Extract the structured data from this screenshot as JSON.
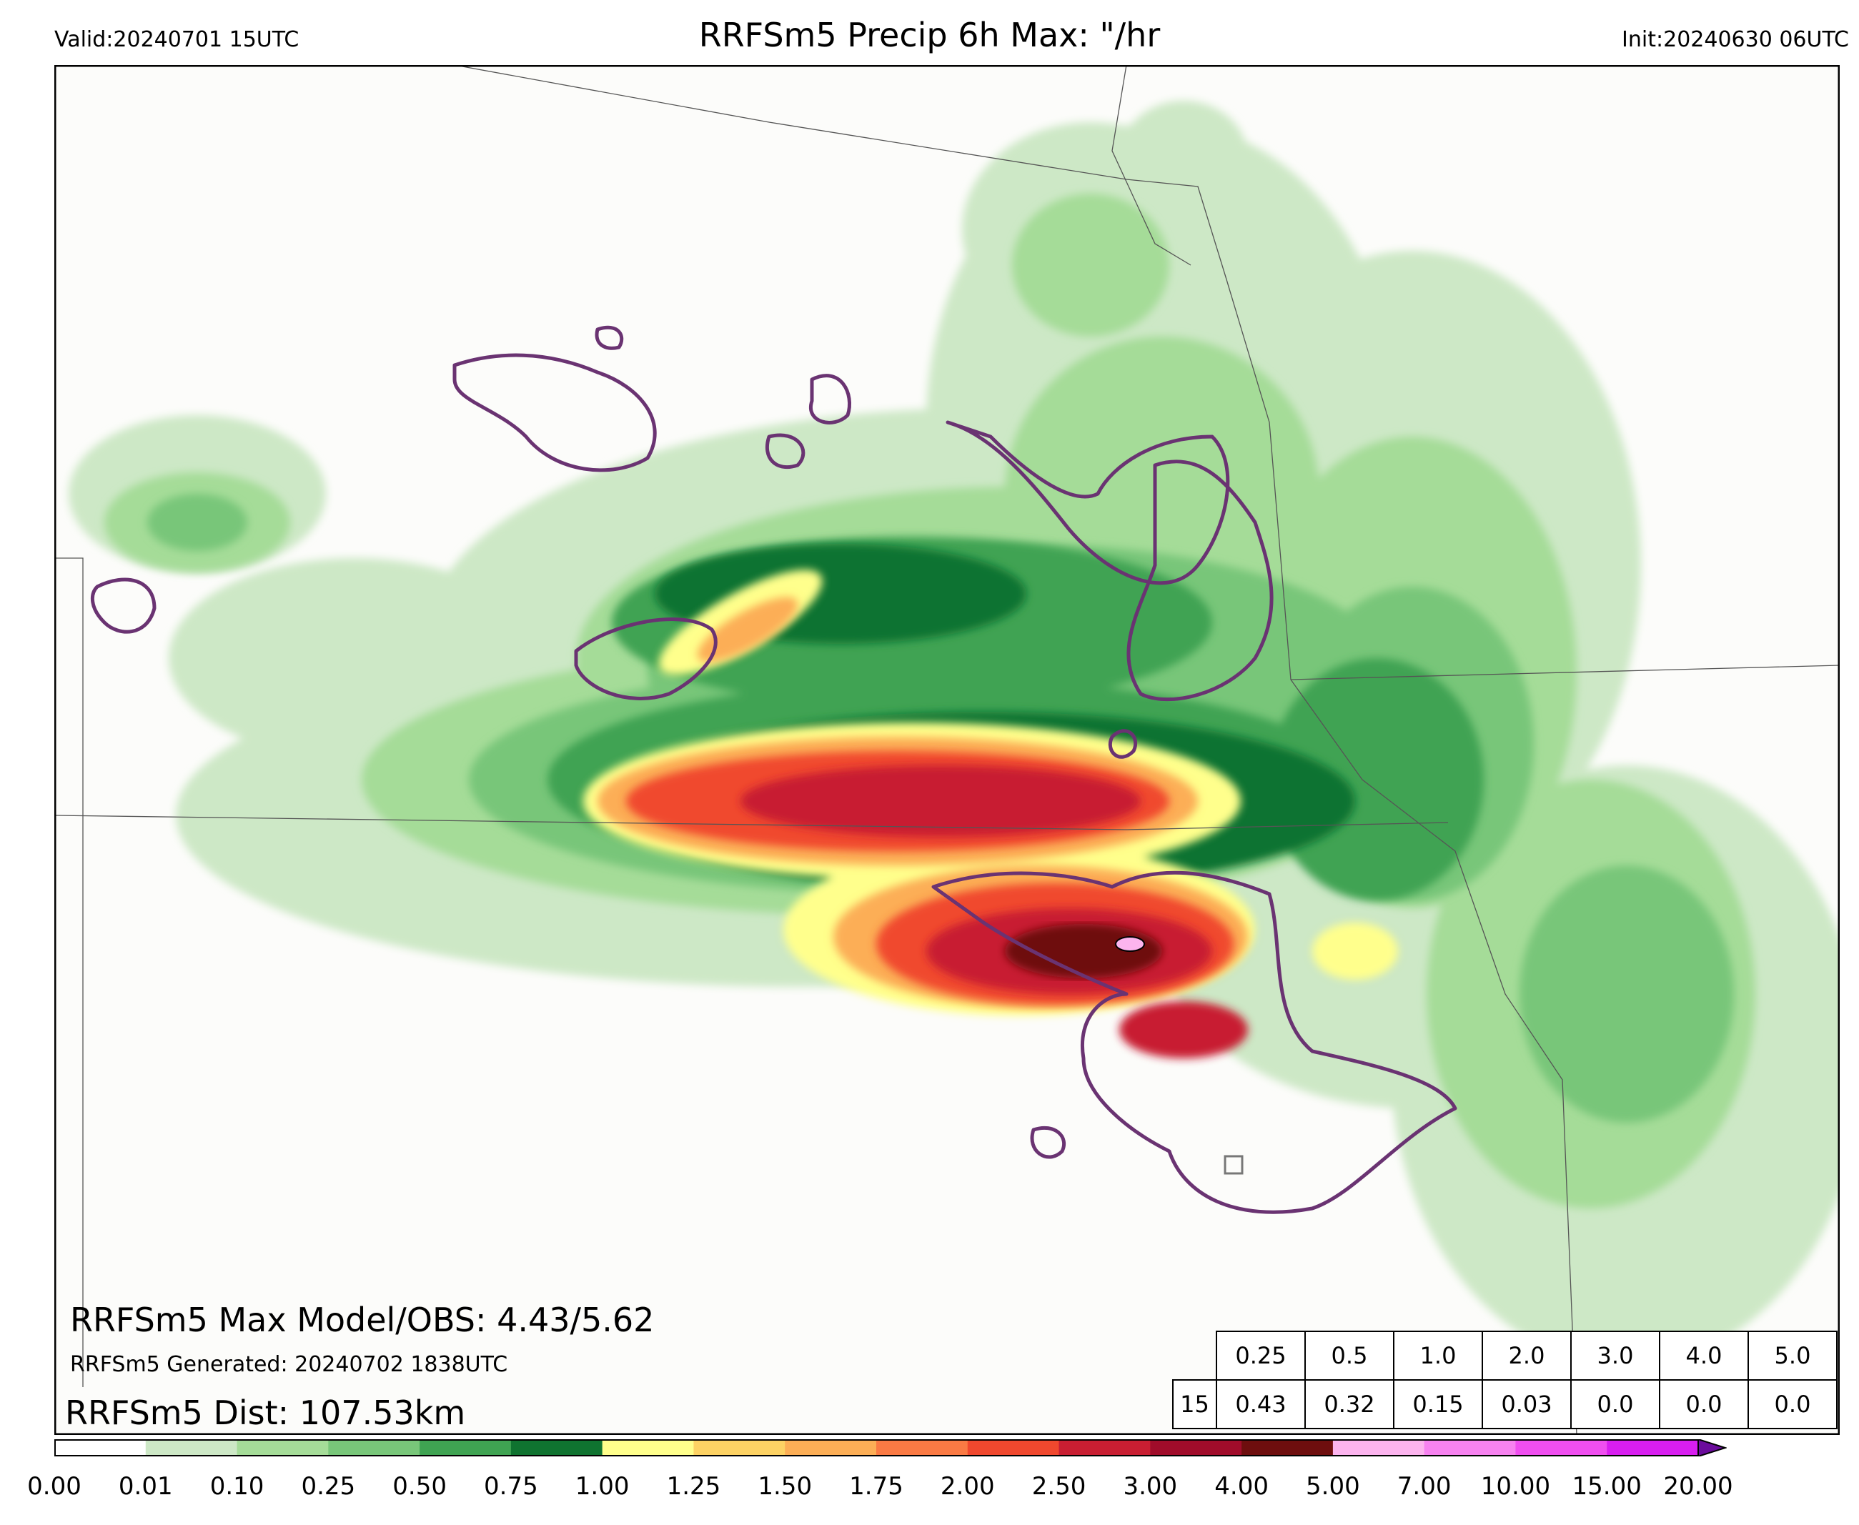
{
  "header": {
    "valid": "Valid:20240701 15UTC",
    "title": "RRFSm5 Precip 6h Max: \"/hr",
    "init": "Init:20240630 06UTC"
  },
  "stats": {
    "max_line": "RRFSm5 Max Model/OBS: 4.43/5.62",
    "generated_line": "RRFSm5 Generated: 20240702 1838UTC",
    "dist_line": "RRFSm5 Dist: 107.53km"
  },
  "table": {
    "thresholds": [
      "0.25",
      "0.5",
      "1.0",
      "2.0",
      "3.0",
      "4.0",
      "5.0"
    ],
    "row_label": "15",
    "values": [
      "0.43",
      "0.32",
      "0.15",
      "0.03",
      "0.0",
      "0.0",
      "0.0"
    ]
  },
  "colorbar": {
    "labels": [
      "0.00",
      "0.01",
      "0.10",
      "0.25",
      "0.50",
      "0.75",
      "1.00",
      "1.25",
      "1.50",
      "1.75",
      "2.00",
      "2.50",
      "3.00",
      "4.00",
      "5.00",
      "7.00",
      "10.00",
      "15.00",
      "20.00"
    ],
    "colors": [
      "#ffffff",
      "#cde8c6",
      "#a5dc98",
      "#78c679",
      "#3fa352",
      "#0f7330",
      "#ffff8c",
      "#fdd264",
      "#fcae56",
      "#fa7a44",
      "#f0482e",
      "#c81e32",
      "#a00c2a",
      "#6e0e0e",
      "#fcb4ee",
      "#f782f0",
      "#f04ef0",
      "#d81ef0",
      "#9a14c8"
    ],
    "extend_color": "#6b0c9c"
  },
  "map": {
    "land_color": "#fcfcfa",
    "outline_color": "#6a3372",
    "border_color": "#444444"
  }
}
